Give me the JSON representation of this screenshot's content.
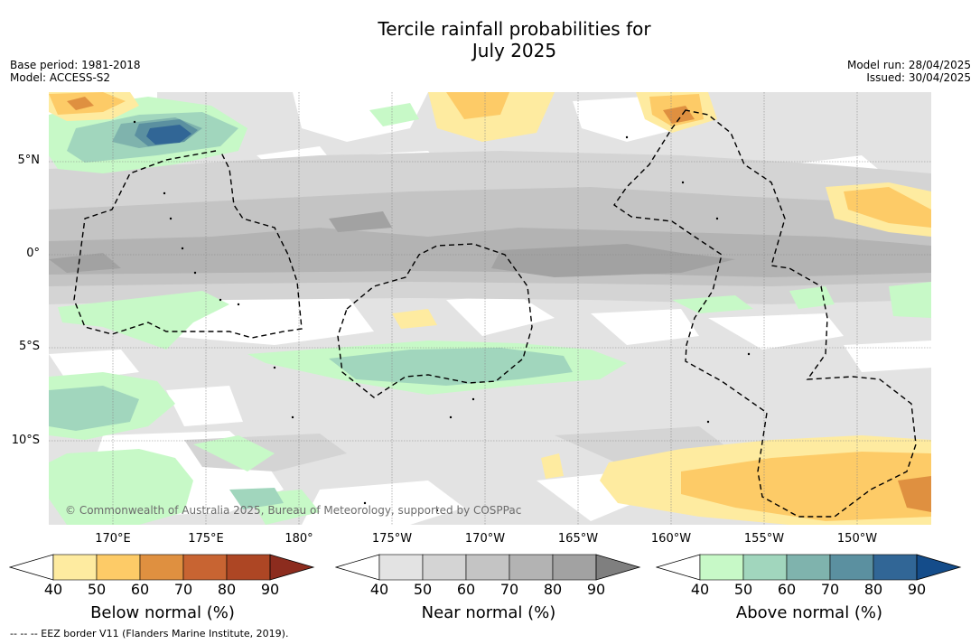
{
  "title": "Tercile rainfall probabilities for\nJuly 2025",
  "base_period": "Base period: 1981-2018",
  "model": "Model: ACCESS-S2",
  "model_run": "Model run: 28/04/2025",
  "issued": "Issued: 30/04/2025",
  "lat_labels": [
    "5°N",
    "0°",
    "5°S",
    "10°S"
  ],
  "lon_labels": [
    "170°E",
    "175°E",
    "180°",
    "175°W",
    "170°W",
    "165°W",
    "160°W",
    "155°W",
    "150°W"
  ],
  "copyright": "© Commonwealth of Australia 2025, Bureau of Meteorology, supported by COSPPac",
  "eez_note": "-- -- -- EEZ border V11 (Flanders Marine Institute, 2019).",
  "colorbars": [
    {
      "title": "Below normal (%)",
      "ticks": [
        "40",
        "50",
        "60",
        "70",
        "80",
        "90"
      ],
      "colors": [
        "#ffffff",
        "#feeba0",
        "#fdcb67",
        "#df9040",
        "#c86432",
        "#ad4624",
        "#8c2c1e"
      ]
    },
    {
      "title": "Near normal (%)",
      "ticks": [
        "40",
        "50",
        "60",
        "70",
        "80",
        "90"
      ],
      "colors": [
        "#ffffff",
        "#e3e3e3",
        "#d4d4d4",
        "#c4c4c4",
        "#b3b3b3",
        "#a2a2a2",
        "#7f7f7f"
      ]
    },
    {
      "title": "Above normal (%)",
      "ticks": [
        "40",
        "50",
        "60",
        "70",
        "80",
        "90"
      ],
      "colors": [
        "#ffffff",
        "#c7f9c7",
        "#a1d6bd",
        "#7fb3ad",
        "#5b90a0",
        "#316696",
        "#144c8a"
      ]
    }
  ]
}
